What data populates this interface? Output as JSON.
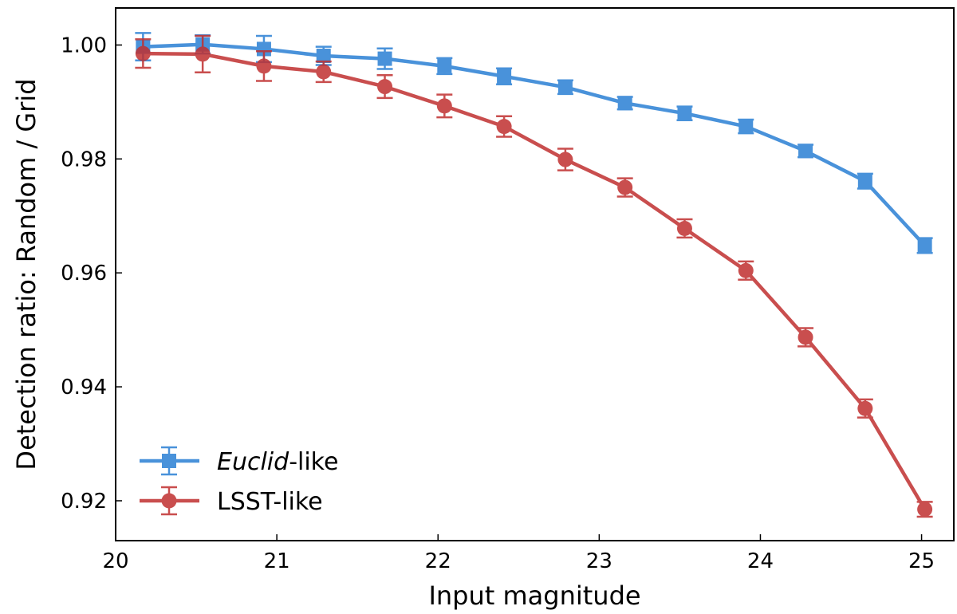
{
  "chart_data": {
    "type": "line",
    "title": "",
    "xlabel": "Input magnitude",
    "ylabel": "Detection ratio: Random / Grid",
    "xlim": [
      20.0,
      25.2
    ],
    "ylim": [
      0.913,
      1.0065
    ],
    "x_ticks": [
      "20",
      "21",
      "22",
      "23",
      "24",
      "25"
    ],
    "x_tick_values": [
      20,
      21,
      22,
      23,
      24,
      25
    ],
    "y_ticks": [
      "0.92",
      "0.94",
      "0.96",
      "0.98",
      "1.00"
    ],
    "y_tick_values": [
      0.92,
      0.94,
      0.96,
      0.98,
      1.0
    ],
    "legend_position": "lower-left",
    "series": [
      {
        "name": "Euclid",
        "name_suffix": "-like",
        "marker": "square",
        "color": "#2a7fd4",
        "x": [
          20.17,
          20.54,
          20.92,
          21.29,
          21.67,
          22.04,
          22.41,
          22.79,
          23.16,
          23.53,
          23.91,
          24.28,
          24.65,
          25.02
        ],
        "values": [
          0.9997,
          1.0001,
          0.9993,
          0.9981,
          0.9976,
          0.9963,
          0.9945,
          0.9926,
          0.9898,
          0.988,
          0.9857,
          0.9814,
          0.9761,
          0.9648
        ],
        "errors": [
          0.0024,
          0.0016,
          0.0023,
          0.0016,
          0.0018,
          0.0014,
          0.0014,
          0.0012,
          0.0011,
          0.0012,
          0.0012,
          0.0011,
          0.0013,
          0.0013
        ]
      },
      {
        "name": "LSST-like",
        "name_suffix": "",
        "marker": "circle",
        "color": "#c03030",
        "x": [
          20.17,
          20.54,
          20.92,
          21.29,
          21.67,
          22.04,
          22.41,
          22.79,
          23.16,
          23.53,
          23.91,
          24.28,
          24.65,
          25.02
        ],
        "values": [
          0.9985,
          0.9984,
          0.9963,
          0.9953,
          0.9927,
          0.9893,
          0.9857,
          0.9799,
          0.975,
          0.9678,
          0.9604,
          0.9487,
          0.9362,
          0.9185
        ],
        "errors": [
          0.0025,
          0.0032,
          0.0026,
          0.0018,
          0.002,
          0.002,
          0.0018,
          0.0019,
          0.0016,
          0.0016,
          0.0016,
          0.0016,
          0.0016,
          0.0013
        ]
      }
    ]
  }
}
